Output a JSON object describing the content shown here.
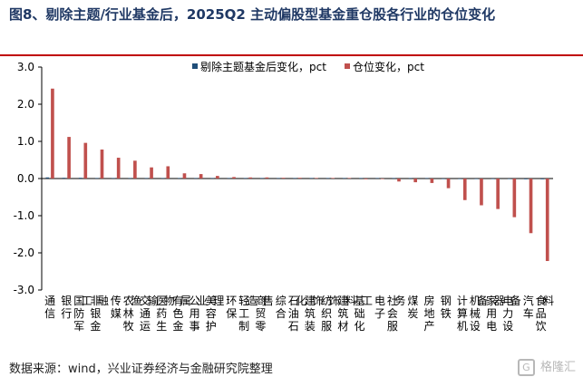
{
  "title": "图8、剔除主题/行业基金后，2025Q2 主动偏股型基金重仓股各行业的仓位变化",
  "source": "数据来源：wind，兴业证券经济与金融研究院整理",
  "watermark": {
    "logo": "G",
    "text": "格隆汇"
  },
  "chart_data": {
    "type": "bar",
    "title": "",
    "xlabel": "",
    "ylabel": "",
    "ylim": [
      -3.0,
      3.0
    ],
    "yticks": [
      "3.0",
      "2.0",
      "1.0",
      "0.0",
      "-1.0",
      "-2.0",
      "-3.0"
    ],
    "grid": false,
    "legend_position": "top-center",
    "categories": [
      "通信",
      "银行",
      "国防军工",
      "非银金融",
      "传媒",
      "农林牧渔",
      "交通运输",
      "医药生物",
      "有色金属",
      "公用事业",
      "美容护理",
      "环保",
      "轻工制造",
      "商贸零售",
      "综合",
      "石油石化",
      "建筑装饰",
      "纺织服饰",
      "建筑材料",
      "基础化工",
      "电子",
      "社会服务",
      "煤炭",
      "房地产",
      "钢铁",
      "计算机",
      "机械设备",
      "家用电器",
      "电力设备",
      "汽车",
      "食品饮料"
    ],
    "series": [
      {
        "name": "剔除主题基金后变化，pct",
        "color": "#1f4e79",
        "values": [
          0.03,
          0.02,
          0.02,
          0.01,
          0.01,
          0.01,
          0.01,
          0.01,
          0.0,
          0.0,
          0.0,
          0.0,
          0.0,
          0.0,
          0.0,
          0.0,
          0.0,
          0.0,
          0.0,
          0.0,
          0.0,
          0.0,
          0.0,
          0.0,
          -0.01,
          -0.01,
          -0.01,
          -0.01,
          -0.01,
          -0.02,
          -0.02
        ]
      },
      {
        "name": "仓位变化，pct",
        "color": "#c0504d",
        "values": [
          2.42,
          1.12,
          0.96,
          0.78,
          0.56,
          0.48,
          0.3,
          0.33,
          0.14,
          0.12,
          0.07,
          0.04,
          0.03,
          0.03,
          0.02,
          0.02,
          0.01,
          0.01,
          0.01,
          -0.02,
          -0.01,
          -0.08,
          -0.1,
          -0.12,
          -0.26,
          -0.58,
          -0.72,
          -0.82,
          -1.04,
          -1.47,
          -2.22
        ]
      }
    ]
  }
}
